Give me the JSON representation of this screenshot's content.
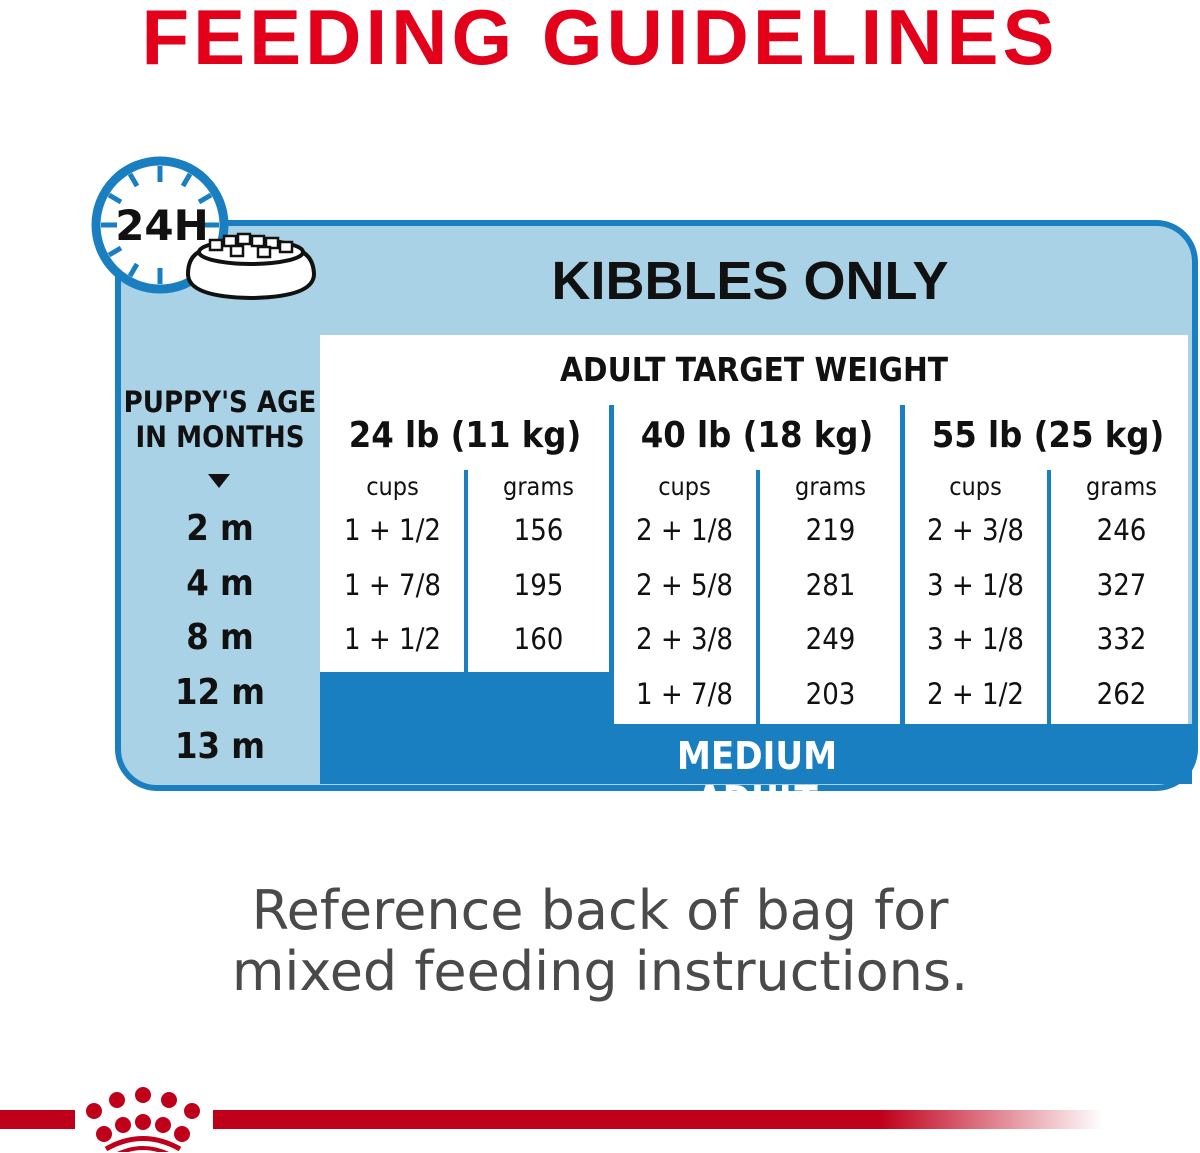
{
  "title": "FEEDING GUIDELINES",
  "panel": {
    "heading": "KIBBLES ONLY",
    "icon": "clock-24h-with-food-bowl-icon",
    "clock_label": "24H",
    "age_header_line1": "PUPPY'S AGE",
    "age_header_line2": "IN MONTHS",
    "ages": [
      "2 m",
      "4 m",
      "8 m",
      "12 m",
      "13 m"
    ],
    "target_header": "ADULT TARGET WEIGHT",
    "transition_label": "MEDIUM ADULT",
    "columns": [
      {
        "weight": "24 lb (11 kg)",
        "cups_label": "cups",
        "grams_label": "grams",
        "rows": [
          {
            "cups": "1 + 1/2",
            "grams": "156"
          },
          {
            "cups": "1 + 7/8",
            "grams": "195"
          },
          {
            "cups": "1 + 1/2",
            "grams": "160"
          }
        ]
      },
      {
        "weight": "40 lb (18 kg)",
        "cups_label": "cups",
        "grams_label": "grams",
        "rows": [
          {
            "cups": "2 + 1/8",
            "grams": "219"
          },
          {
            "cups": "2 + 5/8",
            "grams": "281"
          },
          {
            "cups": "2 + 3/8",
            "grams": "249"
          },
          {
            "cups": "1 + 7/8",
            "grams": "203"
          }
        ]
      },
      {
        "weight": "55 lb (25 kg)",
        "cups_label": "cups",
        "grams_label": "grams",
        "rows": [
          {
            "cups": "2 + 3/8",
            "grams": "246"
          },
          {
            "cups": "3 + 1/8",
            "grams": "327"
          },
          {
            "cups": "3 + 1/8",
            "grams": "332"
          },
          {
            "cups": "2 + 1/2",
            "grams": "262"
          }
        ]
      }
    ]
  },
  "note_line1": "Reference back of bag for",
  "note_line2": "mixed feeding instructions.",
  "logo": "royal-canin-crown-logo",
  "colors": {
    "brand_red": "#e2001a",
    "blue": "#1a7fc1",
    "light_blue": "#a9d2e6"
  }
}
